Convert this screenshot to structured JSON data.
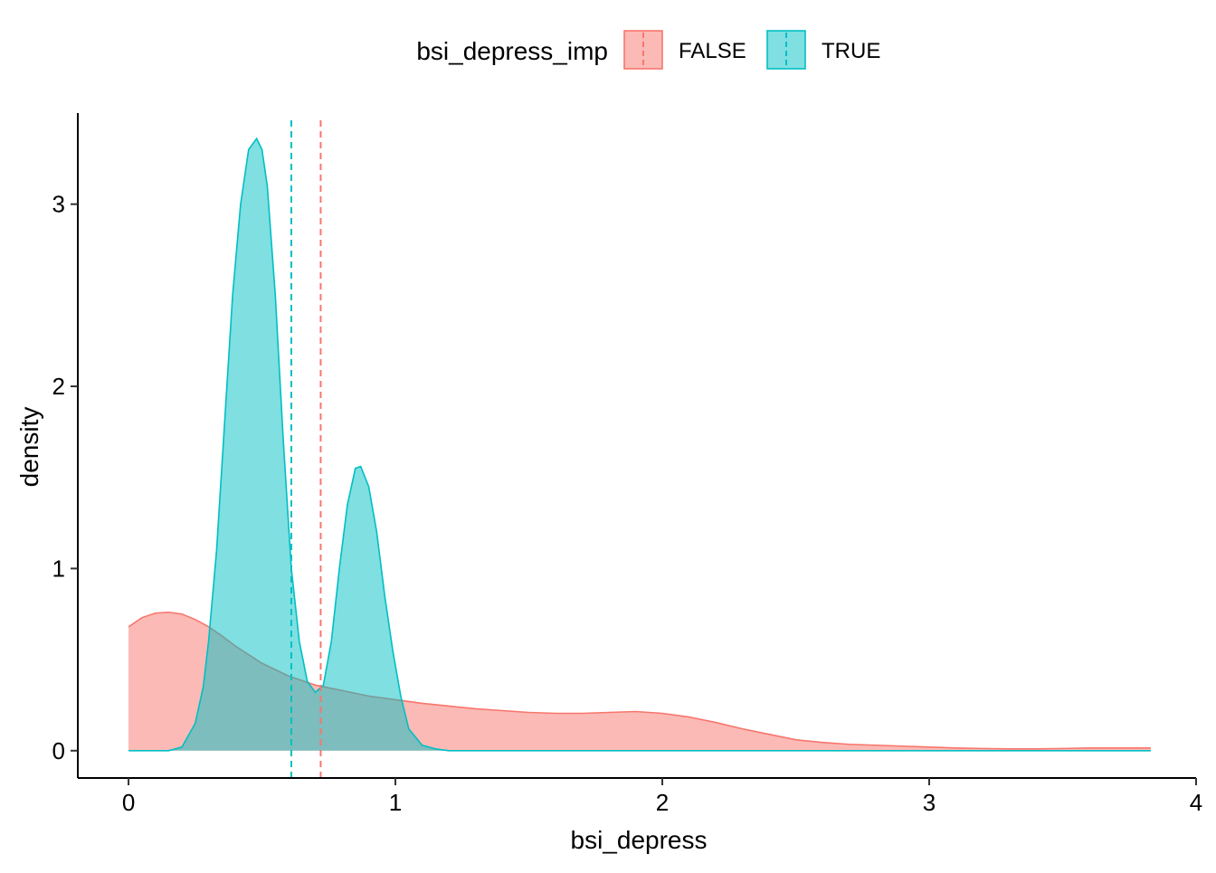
{
  "chart_data": {
    "type": "area",
    "title": "",
    "xlabel": "bsi_depress",
    "ylabel": "density",
    "xlim": [
      -0.19,
      4.0
    ],
    "ylim": [
      -0.15,
      3.5
    ],
    "x_ticks": [
      0,
      1,
      2,
      3,
      4
    ],
    "y_ticks": [
      0,
      1,
      2,
      3
    ],
    "grid": false,
    "legend": {
      "title": "bsi_depress_imp",
      "placement": "top",
      "entries": [
        "FALSE",
        "TRUE"
      ]
    },
    "series": [
      {
        "name": "FALSE",
        "fill": "#F8766D",
        "stroke": "#F8766D",
        "mean_line_x": 0.72,
        "x": [
          0,
          0.05,
          0.1,
          0.15,
          0.2,
          0.25,
          0.3,
          0.35,
          0.4,
          0.5,
          0.6,
          0.7,
          0.8,
          0.9,
          1.0,
          1.1,
          1.2,
          1.3,
          1.4,
          1.5,
          1.6,
          1.7,
          1.8,
          1.9,
          2.0,
          2.1,
          2.2,
          2.3,
          2.4,
          2.5,
          2.6,
          2.7,
          2.8,
          2.9,
          3.0,
          3.1,
          3.2,
          3.3,
          3.4,
          3.5,
          3.6,
          3.7,
          3.83
        ],
        "y": [
          0.68,
          0.73,
          0.755,
          0.76,
          0.75,
          0.72,
          0.68,
          0.63,
          0.575,
          0.48,
          0.41,
          0.36,
          0.33,
          0.3,
          0.28,
          0.26,
          0.245,
          0.23,
          0.22,
          0.21,
          0.205,
          0.205,
          0.21,
          0.215,
          0.205,
          0.185,
          0.155,
          0.12,
          0.09,
          0.06,
          0.045,
          0.035,
          0.03,
          0.025,
          0.02,
          0.015,
          0.012,
          0.01,
          0.01,
          0.012,
          0.015,
          0.015,
          0.015
        ]
      },
      {
        "name": "TRUE",
        "fill": "#00BFC4",
        "stroke": "#00BFC4",
        "mean_line_x": 0.61,
        "x": [
          0,
          0.15,
          0.2,
          0.25,
          0.28,
          0.3,
          0.33,
          0.36,
          0.39,
          0.42,
          0.45,
          0.48,
          0.5,
          0.52,
          0.55,
          0.58,
          0.61,
          0.64,
          0.67,
          0.7,
          0.73,
          0.76,
          0.79,
          0.82,
          0.85,
          0.87,
          0.9,
          0.93,
          0.96,
          0.99,
          1.02,
          1.05,
          1.1,
          1.15,
          1.2,
          3.83
        ],
        "y": [
          0,
          0,
          0.02,
          0.15,
          0.35,
          0.6,
          1.1,
          1.8,
          2.5,
          3.0,
          3.3,
          3.36,
          3.3,
          3.1,
          2.5,
          1.7,
          1.0,
          0.6,
          0.38,
          0.32,
          0.36,
          0.6,
          1.0,
          1.35,
          1.55,
          1.56,
          1.45,
          1.2,
          0.85,
          0.55,
          0.3,
          0.12,
          0.03,
          0.01,
          0,
          0
        ]
      }
    ]
  }
}
